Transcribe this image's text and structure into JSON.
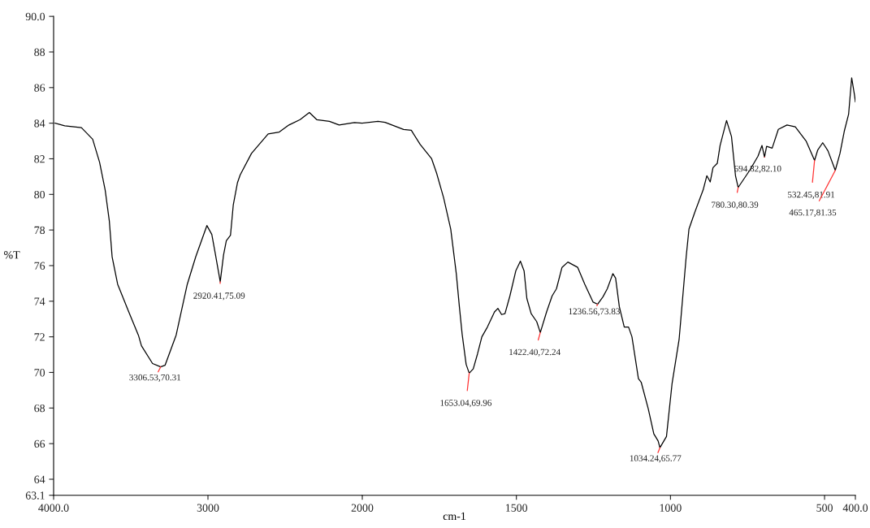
{
  "chart_data": [
    {
      "type": "line",
      "ylabel": "%T",
      "xlim": [
        4000,
        2000
      ],
      "xticks": [
        {
          "value": 4000,
          "label": "4000.0"
        },
        3000,
        2000
      ],
      "ylim": [
        63.1,
        90
      ],
      "yticks": [
        {
          "value": 63.1,
          "label": "63.1"
        },
        64,
        66,
        68,
        70,
        72,
        74,
        76,
        78,
        80,
        82,
        84,
        86,
        88,
        {
          "value": 90,
          "label": "90.0"
        }
      ],
      "grid": false,
      "legend": false,
      "marker": "none",
      "line_style": "solid",
      "series": [
        {
          "color": "#000000",
          "x": [
            3991,
            3928,
            3820,
            3747,
            3702,
            3666,
            3639,
            3621,
            3585,
            3513,
            3449,
            3431,
            3359,
            3306.53,
            3278,
            3206,
            3134,
            3079,
            3007,
            2975,
            2953,
            2920.41,
            2899,
            2881,
            2854,
            2836,
            2809,
            2791,
            2718,
            2610,
            2538,
            2475,
            2403,
            2343,
            2295,
            2213,
            2150,
            2051,
            2000
          ],
          "values": [
            84.0,
            83.85,
            83.75,
            83.1,
            81.8,
            80.25,
            78.5,
            76.5,
            74.95,
            73.4,
            72.05,
            71.5,
            70.5,
            70.31,
            70.4,
            72.1,
            74.95,
            76.5,
            78.25,
            77.75,
            76.7,
            75.09,
            76.6,
            77.4,
            77.7,
            79.4,
            80.65,
            81.1,
            82.3,
            83.4,
            83.5,
            83.9,
            84.2,
            84.6,
            84.2,
            84.1,
            83.9,
            84.03,
            84.0
          ]
        }
      ],
      "annotations": [
        {
          "text": "3306.53,70.31",
          "x": 3306.53,
          "y": 70.31
        },
        {
          "text": "2920.41,75.09",
          "x": 2920.41,
          "y": 75.09
        }
      ]
    },
    {
      "type": "line",
      "xlabel": "cm-1",
      "xlim": [
        2000,
        400
      ],
      "xticks": [
        1500,
        1000,
        500,
        {
          "value": 400,
          "label": "400.0"
        }
      ],
      "ylim": [
        63.1,
        90
      ],
      "tick_labels": "x",
      "grid": false,
      "legend": false,
      "marker": "none",
      "line_style": "solid",
      "series": [
        {
          "color": "#000000",
          "x": [
            2000,
            1949,
            1926,
            1866,
            1841,
            1812,
            1775,
            1759,
            1736,
            1713,
            1695,
            1685,
            1676,
            1663,
            1653.04,
            1640,
            1626,
            1612,
            1594,
            1571,
            1560,
            1548,
            1537,
            1521,
            1502,
            1487,
            1475,
            1466,
            1452,
            1434,
            1422.4,
            1402,
            1384,
            1370,
            1352,
            1333,
            1301,
            1278,
            1251,
            1236.56,
            1219,
            1205,
            1187,
            1178,
            1166,
            1150,
            1136,
            1125,
            1104,
            1095,
            1072,
            1054,
            1040,
            1034.24,
            1013,
            995,
            972,
            949,
            940,
            921,
            894,
            882,
            871,
            862,
            848,
            839,
            818,
            802,
            789,
            780.3,
            743,
            716,
            703,
            694.82,
            688,
            670,
            650,
            622,
            595,
            560,
            532.45,
            522,
            506,
            489,
            465.17,
            450,
            436,
            422,
            412,
            403,
            400
          ],
          "values": [
            84.0,
            84.1,
            84.05,
            83.65,
            83.6,
            82.8,
            82.0,
            81.2,
            79.8,
            78.05,
            75.55,
            73.7,
            72.15,
            70.45,
            69.96,
            70.2,
            71.05,
            72.0,
            72.55,
            73.4,
            73.6,
            73.25,
            73.3,
            74.3,
            75.7,
            76.25,
            75.7,
            74.15,
            73.3,
            72.85,
            72.24,
            73.4,
            74.3,
            74.7,
            75.9,
            76.2,
            75.9,
            74.95,
            73.95,
            73.83,
            74.25,
            74.7,
            75.55,
            75.3,
            73.7,
            72.55,
            72.55,
            72.0,
            69.65,
            69.45,
            67.95,
            66.55,
            66.15,
            65.77,
            66.4,
            69.35,
            71.85,
            76.5,
            78.05,
            79.0,
            80.25,
            81.05,
            80.7,
            81.5,
            81.75,
            82.75,
            84.15,
            83.25,
            81.05,
            80.39,
            81.35,
            82.15,
            82.75,
            82.1,
            82.7,
            82.6,
            83.65,
            83.9,
            83.8,
            83.0,
            81.91,
            82.5,
            82.9,
            82.45,
            81.35,
            82.3,
            83.55,
            84.5,
            86.55,
            85.6,
            85.2
          ]
        }
      ],
      "annotations": [
        {
          "text": "1653.04,69.96",
          "x": 1653.04,
          "y": 69.96
        },
        {
          "text": "1422.40,72.24",
          "x": 1422.4,
          "y": 72.24
        },
        {
          "text": "1236.56,73.83",
          "x": 1236.56,
          "y": 73.83
        },
        {
          "text": "1034.24,65.77",
          "x": 1034.24,
          "y": 65.77
        },
        {
          "text": "780.30,80.39",
          "x": 780.3,
          "y": 80.39
        },
        {
          "text": "694.82,82.10",
          "x": 694.82,
          "y": 82.1
        },
        {
          "text": "532.45,81.91",
          "x": 532.45,
          "y": 81.91
        },
        {
          "text": "465.17,81.35",
          "x": 465.17,
          "y": 81.35
        }
      ]
    }
  ]
}
